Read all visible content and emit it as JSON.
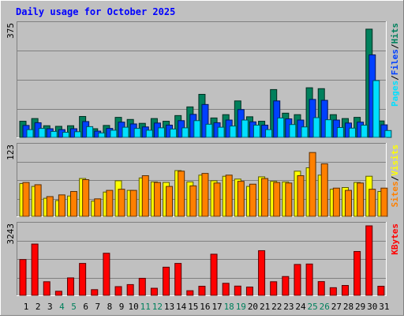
{
  "title": "Daily usage for October 2025",
  "colors": {
    "background": "#C0C0C0",
    "title": "#0000FF",
    "hits": "#00805C",
    "files": "#0040FF",
    "pages": "#00E0FF",
    "visits": "#FFFF00",
    "sites": "#FF8000",
    "kbytes": "#FF0000",
    "weekend_day": "#00805C",
    "weekday": "#000000",
    "grid": "#808080"
  },
  "chart_data": [
    {
      "type": "bar",
      "panel": "hits-files-pages",
      "ymax_label": "375",
      "ylim": [
        0,
        375
      ],
      "legend": [
        "Pages",
        "Files",
        "Hits"
      ],
      "categories": [
        "1",
        "2",
        "3",
        "4",
        "5",
        "6",
        "7",
        "8",
        "9",
        "10",
        "11",
        "12",
        "13",
        "14",
        "15",
        "16",
        "17",
        "18",
        "19",
        "20",
        "21",
        "22",
        "23",
        "24",
        "25",
        "26",
        "27",
        "28",
        "29",
        "30",
        "31"
      ],
      "weekend_days": [
        "4",
        "5",
        "11",
        "12",
        "18",
        "19",
        "25",
        "26"
      ],
      "series": [
        {
          "name": "Hits",
          "values": [
            54,
            63,
            39,
            37,
            39,
            70,
            29,
            40,
            67,
            60,
            47,
            63,
            54,
            73,
            102,
            144,
            65,
            76,
            122,
            69,
            54,
            160,
            81,
            76,
            166,
            163,
            76,
            63,
            67,
            362,
            55
          ]
        },
        {
          "name": "Files",
          "values": [
            40,
            49,
            29,
            26,
            29,
            53,
            21,
            30,
            51,
            45,
            35,
            48,
            41,
            56,
            77,
            110,
            49,
            58,
            93,
            52,
            41,
            122,
            62,
            58,
            127,
            124,
            58,
            48,
            51,
            276,
            42
          ]
        },
        {
          "name": "Pages",
          "values": [
            26,
            30,
            20,
            17,
            19,
            36,
            15,
            24,
            34,
            30,
            24,
            32,
            28,
            32,
            56,
            44,
            34,
            38,
            58,
            41,
            26,
            65,
            43,
            35,
            66,
            59,
            33,
            31,
            41,
            190,
            23
          ]
        }
      ]
    },
    {
      "type": "bar",
      "panel": "visits-sites",
      "ymax_label": "123",
      "ylim": [
        0,
        123
      ],
      "legend": [
        "Sites",
        "Visits"
      ],
      "categories": [
        "1",
        "2",
        "3",
        "4",
        "5",
        "6",
        "7",
        "8",
        "9",
        "10",
        "11",
        "12",
        "13",
        "14",
        "15",
        "16",
        "17",
        "18",
        "19",
        "20",
        "21",
        "22",
        "23",
        "24",
        "25",
        "26",
        "27",
        "28",
        "29",
        "30",
        "31"
      ],
      "series": [
        {
          "name": "Visits",
          "values": [
            58,
            53,
            32,
            28,
            36,
            67,
            27,
            43,
            63,
            46,
            68,
            61,
            60,
            81,
            61,
            73,
            63,
            71,
            66,
            53,
            70,
            62,
            61,
            80,
            86,
            73,
            48,
            51,
            60,
            71,
            44
          ]
        },
        {
          "name": "Sites",
          "values": [
            60,
            56,
            35,
            38,
            44,
            65,
            31,
            46,
            48,
            46,
            72,
            60,
            53,
            80,
            54,
            76,
            59,
            73,
            62,
            57,
            67,
            60,
            59,
            72,
            113,
            93,
            50,
            46,
            59,
            48,
            50
          ]
        }
      ]
    },
    {
      "type": "bar",
      "panel": "kbytes",
      "ymax_label": "3243",
      "ylim": [
        0,
        3243
      ],
      "legend": [
        "KBytes"
      ],
      "categories": [
        "1",
        "2",
        "3",
        "4",
        "5",
        "6",
        "7",
        "8",
        "9",
        "10",
        "11",
        "12",
        "13",
        "14",
        "15",
        "16",
        "17",
        "18",
        "19",
        "20",
        "21",
        "22",
        "23",
        "24",
        "25",
        "26",
        "27",
        "28",
        "29",
        "30",
        "31"
      ],
      "series": [
        {
          "name": "KBytes",
          "values": [
            1670,
            2393,
            634,
            190,
            814,
            1489,
            265,
            1964,
            406,
            501,
            795,
            330,
            1313,
            1489,
            215,
            424,
            1919,
            561,
            431,
            387,
            2084,
            634,
            877,
            1441,
            1461,
            641,
            356,
            460,
            2046,
            3243,
            424
          ]
        }
      ]
    }
  ]
}
